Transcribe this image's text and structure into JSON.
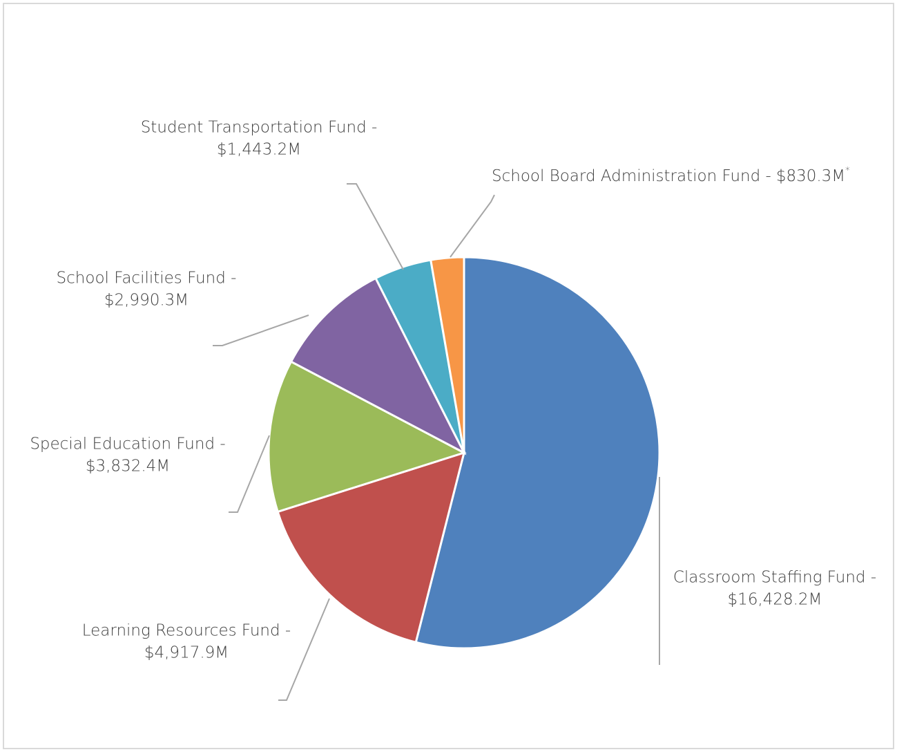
{
  "chart_data": {
    "type": "pie",
    "categories": [
      "Classroom Staffing Fund -",
      "Learning Resources Fund -",
      "Special Education Fund -",
      "School Facilities Fund -",
      "Student Transportation Fund -",
      "School Board Administration Fund -"
    ],
    "values": [
      16428.2,
      4917.9,
      3832.4,
      2990.3,
      1443.2,
      830.3
    ],
    "value_labels": [
      "$16,428.2M",
      "$4,917.9M",
      "$3,832.4M",
      "$2,990.3M",
      "$1,443.2M",
      "$830.3M"
    ],
    "footnote_mark": "*",
    "colors": [
      "#4f81bd",
      "#c0504d",
      "#9bbb59",
      "#8064a2",
      "#4bacc6",
      "#f79646"
    ]
  }
}
